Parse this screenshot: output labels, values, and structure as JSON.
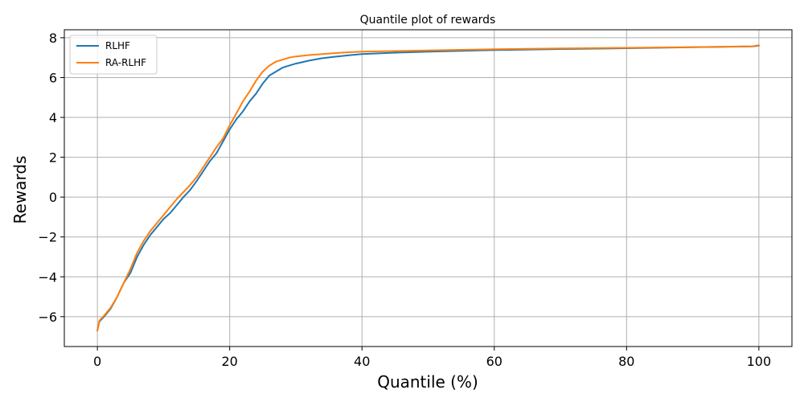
{
  "chart_data": {
    "type": "line",
    "title": "Quantile plot of rewards",
    "xlabel": "Quantile (%)",
    "ylabel": "Rewards",
    "xlim": [
      -5,
      105
    ],
    "ylim": [
      -7.5,
      8.4
    ],
    "xticks": [
      0,
      20,
      40,
      60,
      80,
      100
    ],
    "xtick_labels": [
      "0",
      "20",
      "40",
      "60",
      "80",
      "100"
    ],
    "yticks": [
      -6,
      -4,
      -2,
      0,
      2,
      4,
      6,
      8
    ],
    "ytick_labels": [
      "−6",
      "−4",
      "−2",
      "0",
      "2",
      "4",
      "6",
      "8"
    ],
    "grid": true,
    "legend_position": "top-left",
    "series": [
      {
        "name": "RLHF",
        "color": "#1f77b4",
        "x": [
          0,
          0.3,
          1,
          2,
          3,
          4,
          5,
          6,
          7,
          8,
          9,
          10,
          11,
          12,
          13,
          14,
          15,
          16,
          17,
          18,
          19,
          20,
          21,
          22,
          23,
          24,
          25,
          26,
          27,
          28,
          29,
          30,
          32,
          34,
          36,
          38,
          40,
          45,
          50,
          60,
          70,
          80,
          90,
          99,
          100
        ],
        "y": [
          -6.7,
          -6.25,
          -6.0,
          -5.6,
          -5.0,
          -4.3,
          -3.8,
          -3.0,
          -2.4,
          -1.9,
          -1.5,
          -1.1,
          -0.8,
          -0.4,
          0.0,
          0.35,
          0.8,
          1.3,
          1.8,
          2.2,
          2.8,
          3.4,
          3.9,
          4.3,
          4.8,
          5.2,
          5.7,
          6.1,
          6.3,
          6.5,
          6.6,
          6.7,
          6.85,
          6.97,
          7.05,
          7.12,
          7.18,
          7.25,
          7.3,
          7.38,
          7.43,
          7.47,
          7.52,
          7.56,
          7.6
        ]
      },
      {
        "name": "RA-RLHF",
        "color": "#ff7f0e",
        "x": [
          0,
          0.3,
          1,
          2,
          3,
          4,
          5,
          6,
          7,
          8,
          9,
          10,
          11,
          12,
          13,
          14,
          15,
          16,
          17,
          18,
          19,
          20,
          21,
          22,
          23,
          24,
          25,
          26,
          27,
          28,
          29,
          30,
          32,
          34,
          36,
          38,
          40,
          45,
          50,
          60,
          70,
          80,
          90,
          99,
          100
        ],
        "y": [
          -6.7,
          -6.2,
          -5.95,
          -5.55,
          -5.0,
          -4.3,
          -3.6,
          -2.8,
          -2.2,
          -1.7,
          -1.3,
          -0.9,
          -0.5,
          -0.1,
          0.25,
          0.6,
          1.0,
          1.5,
          2.0,
          2.5,
          2.95,
          3.6,
          4.2,
          4.8,
          5.3,
          5.85,
          6.3,
          6.6,
          6.8,
          6.9,
          7.0,
          7.06,
          7.13,
          7.18,
          7.23,
          7.27,
          7.3,
          7.33,
          7.36,
          7.42,
          7.46,
          7.49,
          7.53,
          7.57,
          7.62
        ]
      }
    ]
  }
}
